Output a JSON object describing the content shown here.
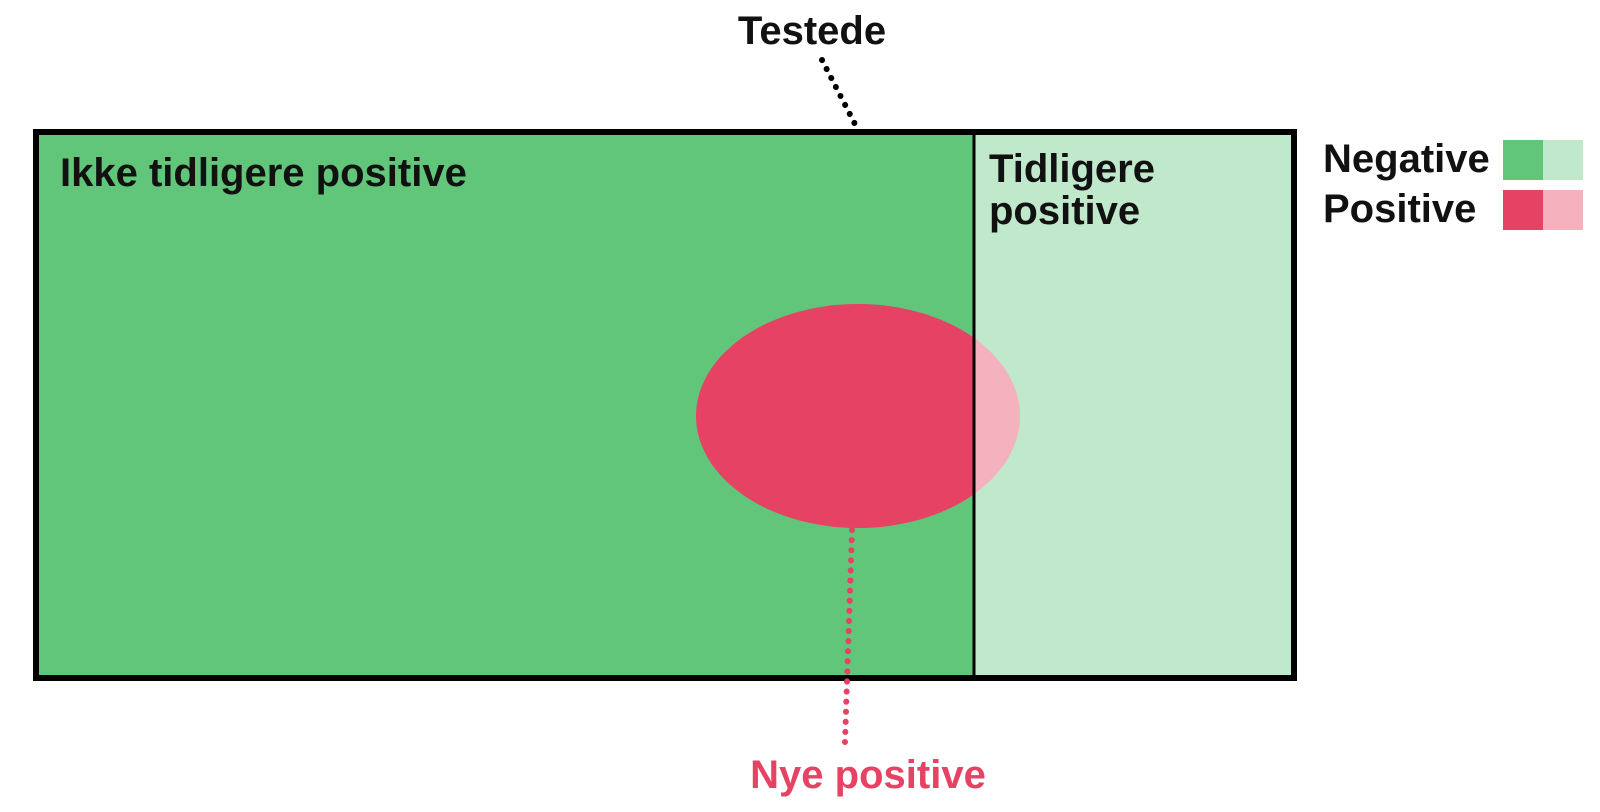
{
  "labels": {
    "tested": "Testede",
    "not_previously_positive": "Ikke tidligere positive",
    "previously_positive_line1": "Tidligere",
    "previously_positive_line2": "positive",
    "new_positive": "Nye positive"
  },
  "legend": {
    "negative": "Negative",
    "positive": "Positive"
  },
  "colors": {
    "negative": "#61c679",
    "negative_light": "#c0e9cb",
    "positive": "#e64263",
    "positive_light": "#f4b2bf",
    "outline": "#000000",
    "text": "#111111"
  }
}
